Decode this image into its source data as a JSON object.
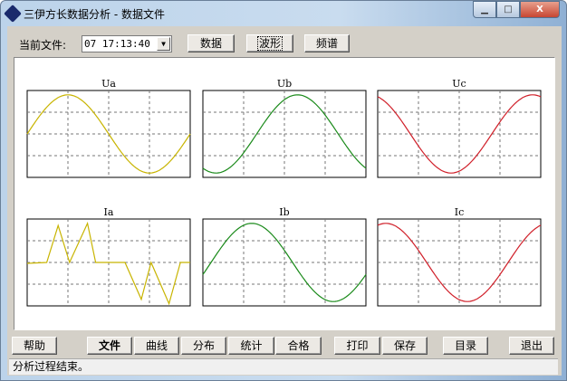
{
  "window": {
    "title": "三伊方长数据分析 - 数据文件",
    "minimize": "▁",
    "maximize": "□",
    "close": "X"
  },
  "toolbar": {
    "current_file_label": "当前文件:",
    "file_value": "07 17:13:40",
    "buttons": [
      "数据",
      "波形",
      "频谱"
    ],
    "active": "波形"
  },
  "bottom_buttons": [
    "帮助",
    "文件",
    "曲线",
    "分布",
    "统计",
    "合格",
    "打印",
    "保存",
    "目录",
    "退出"
  ],
  "status": "分析过程结束。",
  "chart_data": [
    {
      "type": "line",
      "title": "Ua",
      "color": "#c8b400",
      "wave": {
        "amplitude": 0.9,
        "phase_cycles": 0.0
      }
    },
    {
      "type": "line",
      "title": "Ub",
      "color": "#1a8a1a",
      "wave": {
        "amplitude": 0.9,
        "phase_cycles": -0.33
      }
    },
    {
      "type": "line",
      "title": "Uc",
      "color": "#d0202a",
      "wave": {
        "amplitude": 0.9,
        "phase_cycles": 0.3
      }
    },
    {
      "type": "line",
      "title": "Ia",
      "color": "#c8b400",
      "x": [
        0,
        0.12,
        0.19,
        0.26,
        0.37,
        0.42,
        0.6,
        0.7,
        0.76,
        0.87,
        0.94,
        1
      ],
      "y": [
        -0.02,
        0,
        0.85,
        0,
        0.9,
        0,
        0,
        -0.85,
        0,
        -0.95,
        0,
        0
      ]
    },
    {
      "type": "line",
      "title": "Ib",
      "color": "#1a8a1a",
      "wave": {
        "amplitude": 0.9,
        "phase_cycles": -0.05
      }
    },
    {
      "type": "line",
      "title": "Ic",
      "color": "#d0202a",
      "wave": {
        "amplitude": 0.9,
        "phase_cycles": 0.2
      }
    }
  ]
}
